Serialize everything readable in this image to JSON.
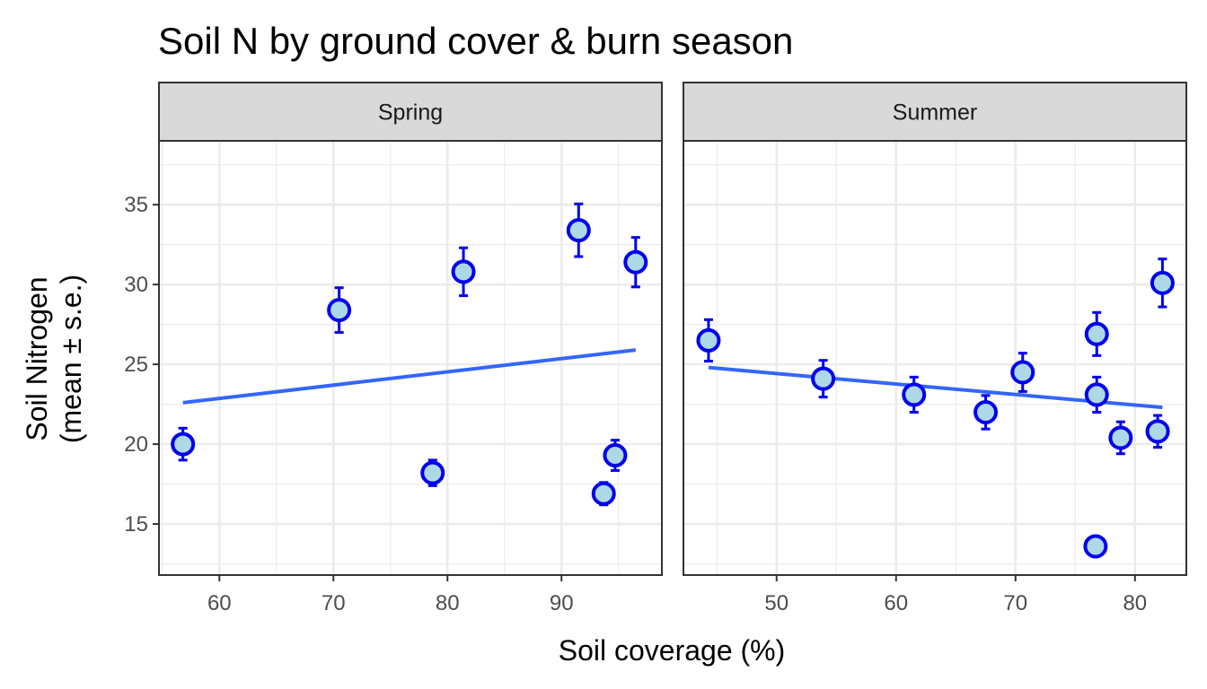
{
  "chart_data": {
    "type": "scatter",
    "title": "Soil N by ground cover & burn season",
    "xlabel": "Soil coverage (%)",
    "ylabel_lines": [
      "Soil Nitrogen",
      "(mean ± s.e.)"
    ],
    "ylim": [
      11.8,
      39.0
    ],
    "yticks": [
      15,
      20,
      25,
      30,
      35
    ],
    "grid": true,
    "point_color": "#0000ee",
    "point_fill": "#add8e6",
    "trend_color": "#3366ff",
    "strip_fill": "#d9d9d9",
    "panels": [
      {
        "label": "Spring",
        "xlim": [
          54.7,
          98.8
        ],
        "xticks": [
          60,
          70,
          80,
          90
        ],
        "points": [
          {
            "x": 56.8,
            "y": 20.0,
            "se": 1.0
          },
          {
            "x": 70.5,
            "y": 28.4,
            "se": 1.4
          },
          {
            "x": 78.7,
            "y": 18.2,
            "se": 0.8
          },
          {
            "x": 81.4,
            "y": 30.8,
            "se": 1.5
          },
          {
            "x": 91.5,
            "y": 33.4,
            "se": 1.65
          },
          {
            "x": 93.7,
            "y": 16.9,
            "se": 0.7
          },
          {
            "x": 94.7,
            "y": 19.3,
            "se": 0.95
          },
          {
            "x": 96.5,
            "y": 31.4,
            "se": 1.55
          }
        ],
        "trend": {
          "x": [
            56.8,
            96.5
          ],
          "y": [
            22.6,
            25.9
          ]
        }
      },
      {
        "label": "Summer",
        "xlim": [
          42.2,
          84.3
        ],
        "xticks": [
          50,
          60,
          70,
          80
        ],
        "points": [
          {
            "x": 44.3,
            "y": 26.5,
            "se": 1.3
          },
          {
            "x": 53.9,
            "y": 24.1,
            "se": 1.15
          },
          {
            "x": 61.5,
            "y": 23.1,
            "se": 1.1
          },
          {
            "x": 67.5,
            "y": 22.0,
            "se": 1.05
          },
          {
            "x": 70.6,
            "y": 24.5,
            "se": 1.2
          },
          {
            "x": 76.7,
            "y": 13.6,
            "se": 0.0
          },
          {
            "x": 76.8,
            "y": 26.9,
            "se": 1.35
          },
          {
            "x": 76.8,
            "y": 23.1,
            "se": 1.1
          },
          {
            "x": 78.8,
            "y": 20.4,
            "se": 1.0
          },
          {
            "x": 81.9,
            "y": 20.8,
            "se": 1.0
          },
          {
            "x": 82.3,
            "y": 30.1,
            "se": 1.5
          }
        ],
        "trend": {
          "x": [
            44.3,
            82.3
          ],
          "y": [
            24.8,
            22.3
          ]
        }
      }
    ]
  }
}
